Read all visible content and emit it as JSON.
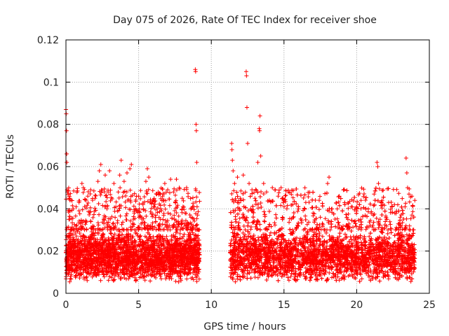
{
  "chart_data": {
    "type": "scatter",
    "title": "Day 075 of 2026, Rate Of TEC Index for receiver shoe",
    "xlabel": "GPS time / hours",
    "ylabel": "ROTI / TECUs",
    "xlim": [
      0,
      25
    ],
    "ylim": [
      0,
      0.12
    ],
    "xticks": [
      0,
      5,
      10,
      15,
      20,
      25
    ],
    "yticks": [
      0,
      0.02,
      0.04,
      0.06,
      0.08,
      0.1,
      0.12
    ],
    "ytick_labels": [
      "0",
      "0.02",
      "0.04",
      "0.06",
      "0.08",
      "0.1",
      "0.12"
    ],
    "grid": true,
    "marker": "+",
    "series": [
      {
        "name": "ROTI",
        "color": "#ff0000",
        "data_gap_hours": [
          9.2,
          11.3
        ],
        "points": [
          [
            0.0,
            0.087
          ],
          [
            0.02,
            0.085
          ],
          [
            0.04,
            0.077
          ],
          [
            0.05,
            0.066
          ],
          [
            0.06,
            0.062
          ],
          [
            0.08,
            0.049
          ],
          [
            0.1,
            0.048
          ],
          [
            0.2,
            0.035
          ],
          [
            0.3,
            0.03
          ],
          [
            0.5,
            0.04
          ],
          [
            0.7,
            0.041
          ],
          [
            0.9,
            0.043
          ],
          [
            1.1,
            0.052
          ],
          [
            1.2,
            0.05
          ],
          [
            1.5,
            0.046
          ],
          [
            1.7,
            0.049
          ],
          [
            2.0,
            0.045
          ],
          [
            2.2,
            0.053
          ],
          [
            2.3,
            0.058
          ],
          [
            2.4,
            0.061
          ],
          [
            2.7,
            0.056
          ],
          [
            2.9,
            0.048
          ],
          [
            3.0,
            0.058
          ],
          [
            3.3,
            0.052
          ],
          [
            3.6,
            0.048
          ],
          [
            3.7,
            0.056
          ],
          [
            3.8,
            0.063
          ],
          [
            4.0,
            0.053
          ],
          [
            4.2,
            0.057
          ],
          [
            4.4,
            0.059
          ],
          [
            4.5,
            0.061
          ],
          [
            4.8,
            0.04
          ],
          [
            5.0,
            0.046
          ],
          [
            5.3,
            0.042
          ],
          [
            5.5,
            0.053
          ],
          [
            5.6,
            0.059
          ],
          [
            5.7,
            0.055
          ],
          [
            6.0,
            0.044
          ],
          [
            6.5,
            0.047
          ],
          [
            6.8,
            0.052
          ],
          [
            7.0,
            0.049
          ],
          [
            7.2,
            0.054
          ],
          [
            7.4,
            0.048
          ],
          [
            7.6,
            0.054
          ],
          [
            7.8,
            0.05
          ],
          [
            8.0,
            0.045
          ],
          [
            8.3,
            0.05
          ],
          [
            8.6,
            0.036
          ],
          [
            8.9,
            0.106
          ],
          [
            8.92,
            0.105
          ],
          [
            8.95,
            0.08
          ],
          [
            8.97,
            0.077
          ],
          [
            9.0,
            0.062
          ],
          [
            9.02,
            0.041
          ],
          [
            11.4,
            0.071
          ],
          [
            11.42,
            0.068
          ],
          [
            11.45,
            0.063
          ],
          [
            11.5,
            0.058
          ],
          [
            11.6,
            0.052
          ],
          [
            11.8,
            0.055
          ],
          [
            12.0,
            0.045
          ],
          [
            12.2,
            0.056
          ],
          [
            12.4,
            0.105
          ],
          [
            12.42,
            0.103
          ],
          [
            12.45,
            0.088
          ],
          [
            12.5,
            0.071
          ],
          [
            12.6,
            0.052
          ],
          [
            12.8,
            0.049
          ],
          [
            13.0,
            0.045
          ],
          [
            13.2,
            0.062
          ],
          [
            13.3,
            0.078
          ],
          [
            13.32,
            0.077
          ],
          [
            13.35,
            0.084
          ],
          [
            13.4,
            0.065
          ],
          [
            13.6,
            0.052
          ],
          [
            13.8,
            0.048
          ],
          [
            14.0,
            0.044
          ],
          [
            14.2,
            0.05
          ],
          [
            14.4,
            0.049
          ],
          [
            14.6,
            0.046
          ],
          [
            14.8,
            0.05
          ],
          [
            15.0,
            0.044
          ],
          [
            15.3,
            0.048
          ],
          [
            15.6,
            0.042
          ],
          [
            16.0,
            0.04
          ],
          [
            16.5,
            0.043
          ],
          [
            17.0,
            0.038
          ],
          [
            17.5,
            0.036
          ],
          [
            18.0,
            0.052
          ],
          [
            18.1,
            0.055
          ],
          [
            18.3,
            0.04
          ],
          [
            18.8,
            0.046
          ],
          [
            19.4,
            0.035
          ],
          [
            20.0,
            0.039
          ],
          [
            20.3,
            0.044
          ],
          [
            20.8,
            0.04
          ],
          [
            21.2,
            0.047
          ],
          [
            21.4,
            0.062
          ],
          [
            21.45,
            0.06
          ],
          [
            21.5,
            0.052
          ],
          [
            21.8,
            0.042
          ],
          [
            22.2,
            0.043
          ],
          [
            22.6,
            0.042
          ],
          [
            23.0,
            0.036
          ],
          [
            23.4,
            0.064
          ],
          [
            23.45,
            0.057
          ],
          [
            23.5,
            0.05
          ],
          [
            23.6,
            0.047
          ],
          [
            23.8,
            0.046
          ],
          [
            24.0,
            0.044
          ]
        ],
        "dense_band": {
          "segments": [
            [
              0.0,
              9.2
            ],
            [
              11.3,
              24.0
            ]
          ],
          "typical_range": [
            0.005,
            0.03
          ],
          "center": 0.016
        }
      }
    ]
  }
}
